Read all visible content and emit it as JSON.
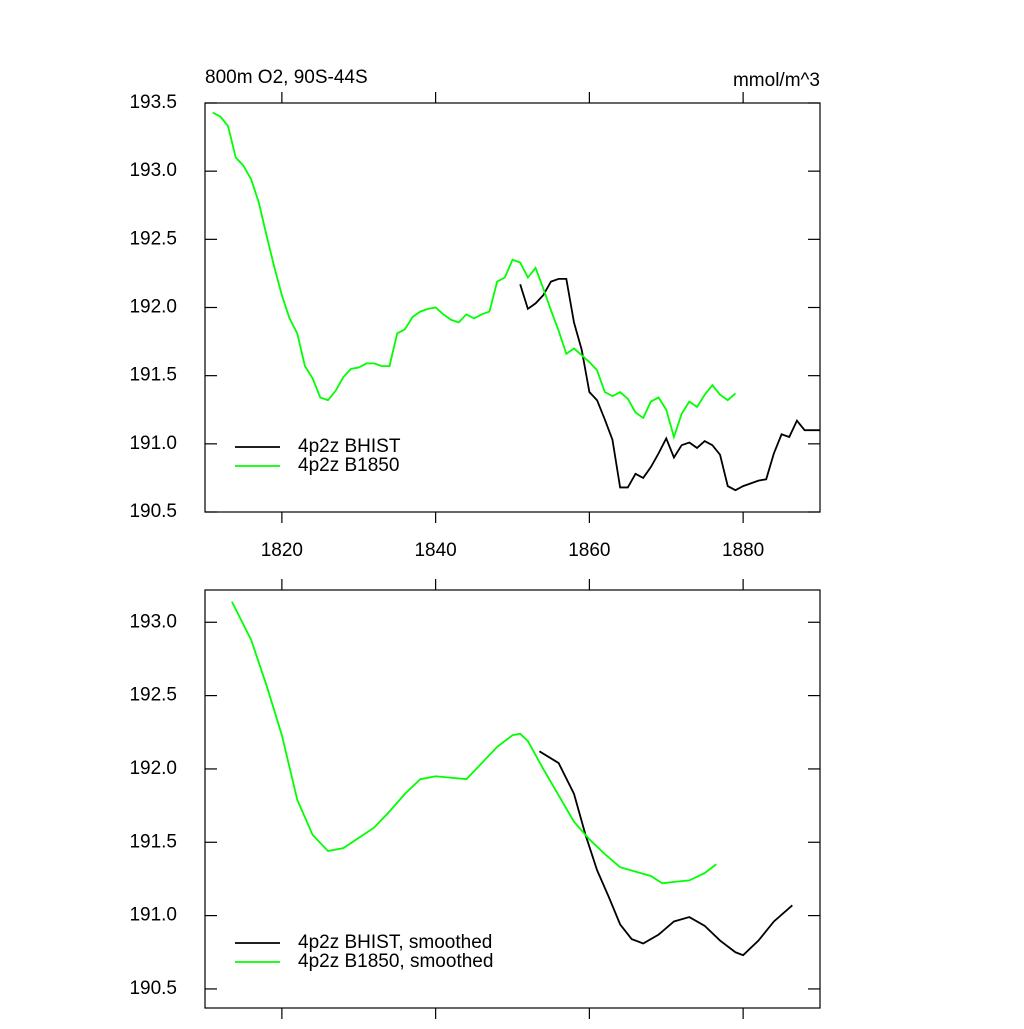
{
  "chart_data": [
    {
      "type": "line",
      "title": "800m O2, 90S-44S",
      "units": "mmol/m^3",
      "xlim": [
        1810,
        1890
      ],
      "xticks": [
        1820,
        1840,
        1860,
        1880
      ],
      "ylim": [
        190.5,
        193.5
      ],
      "yticks": [
        190.5,
        {
          "value": 191,
          "label": "191.0"
        },
        191.5,
        {
          "value": 192,
          "label": "192.0"
        },
        192.5,
        {
          "value": 193,
          "label": "193.0"
        },
        193.5
      ],
      "legend": "lower left",
      "series": [
        {
          "name": "4p2z BHIST",
          "color": "#000000",
          "x": [
            1851,
            1852,
            1853,
            1854,
            1855,
            1856,
            1857,
            1858,
            1859,
            1860,
            1861,
            1862,
            1863,
            1864,
            1865,
            1866,
            1867,
            1868,
            1869,
            1870,
            1871,
            1872,
            1873,
            1874,
            1875,
            1876,
            1877,
            1878,
            1879,
            1880,
            1881,
            1882,
            1883,
            1884,
            1885,
            1886,
            1887,
            1888,
            1889,
            1890
          ],
          "values": [
            192.17,
            191.99,
            192.03,
            192.09,
            192.19,
            192.21,
            192.21,
            191.89,
            191.69,
            191.38,
            191.32,
            191.18,
            191.03,
            190.68,
            190.68,
            190.78,
            190.75,
            190.83,
            190.93,
            191.04,
            190.9,
            190.99,
            191.01,
            190.97,
            191.02,
            190.99,
            190.92,
            190.69,
            190.66,
            190.69,
            190.71,
            190.73,
            190.74,
            190.93,
            191.07,
            191.05,
            191.17,
            191.1,
            191.1,
            191.1
          ]
        },
        {
          "name": "4p2z B1850",
          "color": "#00ff00",
          "x": [
            1811,
            1812,
            1813,
            1814,
            1815,
            1816,
            1817,
            1818,
            1819,
            1820,
            1821,
            1822,
            1823,
            1824,
            1825,
            1826,
            1827,
            1828,
            1829,
            1830,
            1831,
            1832,
            1833,
            1834,
            1835,
            1836,
            1837,
            1838,
            1839,
            1840,
            1841,
            1842,
            1843,
            1844,
            1845,
            1846,
            1847,
            1848,
            1849,
            1850,
            1851,
            1852,
            1853,
            1854,
            1855,
            1856,
            1857,
            1858,
            1859,
            1860,
            1861,
            1862,
            1863,
            1864,
            1865,
            1866,
            1867,
            1868,
            1869,
            1870,
            1871,
            1872,
            1873,
            1874,
            1875,
            1876,
            1877,
            1878,
            1879
          ],
          "values": [
            193.43,
            193.4,
            193.33,
            193.1,
            193.04,
            192.94,
            192.77,
            192.53,
            192.3,
            192.09,
            191.92,
            191.81,
            191.57,
            191.48,
            191.34,
            191.32,
            191.39,
            191.49,
            191.55,
            191.56,
            191.59,
            191.59,
            191.57,
            191.57,
            191.81,
            191.84,
            191.93,
            191.97,
            191.99,
            192.0,
            191.95,
            191.91,
            191.89,
            191.95,
            191.92,
            191.95,
            191.97,
            192.19,
            192.22,
            192.35,
            192.33,
            192.22,
            192.29,
            192.14,
            191.98,
            191.83,
            191.66,
            191.7,
            191.65,
            191.6,
            191.54,
            191.38,
            191.35,
            191.38,
            191.33,
            191.23,
            191.19,
            191.31,
            191.34,
            191.25,
            191.05,
            191.22,
            191.31,
            191.27,
            191.36,
            191.43,
            191.36,
            191.32,
            191.37
          ]
        }
      ]
    },
    {
      "type": "line",
      "xlim": [
        1810,
        1890
      ],
      "xticks": [
        1820,
        1840,
        1860,
        1880
      ],
      "ylim": [
        190.37,
        193.22
      ],
      "yticks": [
        190.5,
        {
          "value": 191,
          "label": "191.0"
        },
        191.5,
        {
          "value": 192,
          "label": "192.0"
        },
        192.5,
        {
          "value": 193,
          "label": "193.0"
        }
      ],
      "legend": "lower left",
      "series": [
        {
          "name": "4p2z BHIST, smoothed",
          "color": "#000000",
          "x": [
            1853.5,
            1856,
            1858,
            1859.5,
            1861,
            1862.5,
            1864,
            1865.5,
            1867,
            1869,
            1871,
            1873,
            1875,
            1877,
            1879,
            1880,
            1882,
            1884,
            1886.4
          ],
          "values": [
            192.12,
            192.04,
            191.83,
            191.55,
            191.31,
            191.13,
            190.94,
            190.84,
            190.81,
            190.87,
            190.96,
            190.99,
            190.93,
            190.83,
            190.75,
            190.73,
            190.83,
            190.96,
            191.07
          ]
        },
        {
          "name": "4p2z B1850, smoothed",
          "color": "#00ff00",
          "x": [
            1813.5,
            1816,
            1818,
            1820,
            1822,
            1824,
            1826,
            1828,
            1830,
            1832,
            1834,
            1836,
            1838,
            1840,
            1842,
            1844,
            1846,
            1848,
            1850,
            1851,
            1852,
            1854,
            1856,
            1858,
            1860,
            1862,
            1864,
            1866,
            1868,
            1869.5,
            1871,
            1873,
            1875,
            1876.5
          ],
          "values": [
            193.14,
            192.88,
            192.57,
            192.23,
            191.79,
            191.55,
            191.44,
            191.46,
            191.53,
            191.6,
            191.71,
            191.83,
            191.93,
            191.95,
            191.94,
            191.93,
            192.04,
            192.15,
            192.23,
            192.24,
            192.19,
            192.0,
            191.82,
            191.64,
            191.52,
            191.42,
            191.33,
            191.3,
            191.27,
            191.22,
            191.23,
            191.24,
            191.29,
            191.35
          ]
        }
      ]
    }
  ]
}
